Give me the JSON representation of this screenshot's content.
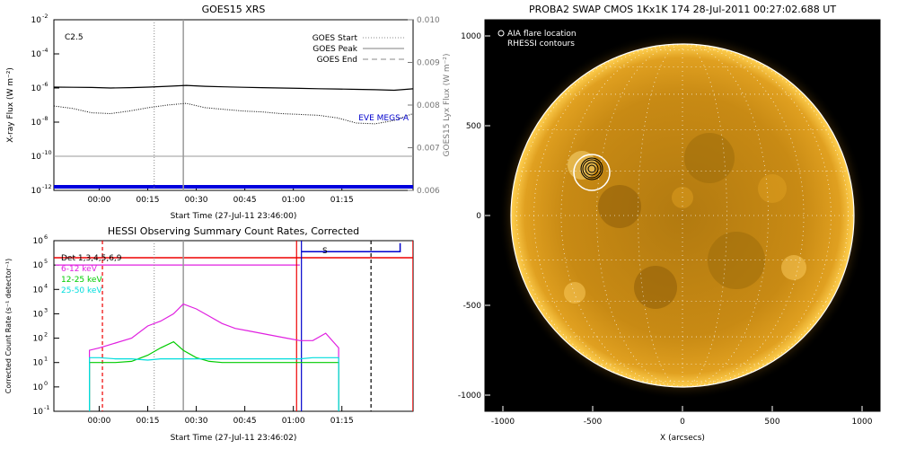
{
  "chart_data": [
    {
      "type": "line",
      "title": "GOES15 XRS",
      "xlabel": "Start Time (27-Jul-11 23:46:00)",
      "ylabel": "X-ray Flux (W m⁻²)",
      "ylabel_right": "GOES15 Lyx Flux (W m⁻²)",
      "ytick_exponents": [
        "-2",
        "-4",
        "-6",
        "-8",
        "-10",
        "-12"
      ],
      "ytick_base": "10",
      "right_ticks": [
        "0.010",
        "0.009",
        "0.008",
        "0.007",
        "0.006"
      ],
      "xticks": [
        "00:00",
        "00:15",
        "00:30",
        "00:45",
        "01:00",
        "01:15"
      ],
      "annotation_class": "C2.5",
      "eve_label": "EVE MEGS-A",
      "legend": [
        {
          "label": "GOES Start",
          "style": "dotted",
          "color": "#888888"
        },
        {
          "label": "GOES Peak",
          "style": "solid",
          "color": "#aaaaaa"
        },
        {
          "label": "GOES End",
          "style": "dashed",
          "color": "#888888"
        }
      ],
      "x_range_min": [
        -14,
        97
      ],
      "goes_start_min": 17,
      "goes_peak_min": 26,
      "series_long_log": [
        -5.95,
        -5.96,
        -5.97,
        -6.0,
        -5.98,
        -5.95,
        -5.9,
        -5.85,
        -5.9,
        -5.93,
        -5.96,
        -5.98,
        -6.0,
        -6.02,
        -6.04,
        -6.06,
        -6.08,
        -6.1,
        -6.13,
        -6.05
      ],
      "series_short_log": [
        -7.05,
        -7.2,
        -7.45,
        -7.5,
        -7.35,
        -7.15,
        -7.0,
        -6.9,
        -7.15,
        -7.25,
        -7.35,
        -7.4,
        -7.5,
        -7.55,
        -7.6,
        -7.75,
        -8.05,
        -8.1,
        -7.9,
        -7.5
      ],
      "lyx_level": 0.0068
    },
    {
      "type": "line",
      "title": "HESSI Observing Summary Count Rates, Corrected",
      "xlabel": "Start Time (27-Jul-11 23:46:02)",
      "ylabel": "Corrected Count Rate (s⁻¹ detector⁻¹)",
      "ytick_exponents": [
        "6",
        "5",
        "4",
        "3",
        "2",
        "1",
        "0",
        "-1"
      ],
      "ytick_base": "10",
      "xticks": [
        "00:00",
        "00:15",
        "00:30",
        "00:45",
        "01:00",
        "01:15"
      ],
      "flag_label": "S",
      "series": [
        {
          "name": "Det 1,3,4,5,6,9",
          "color": "#000000",
          "values": []
        },
        {
          "name": "6-12 keV",
          "color": "#e020e0",
          "values": [
            1.5,
            1.6,
            1.8,
            2.0,
            2.5,
            2.7,
            3.0,
            3.4,
            3.2,
            2.9,
            2.6,
            2.4,
            2.3,
            2.2,
            2.1,
            2.0,
            1.9,
            1.9,
            2.2,
            1.6
          ]
        },
        {
          "name": "12-25 keV",
          "color": "#00cc00",
          "values": [
            1.0,
            1.0,
            1.0,
            1.05,
            1.3,
            1.6,
            1.85,
            1.5,
            1.2,
            1.05,
            1.0,
            1.0,
            1.0,
            1.0,
            1.0,
            1.0,
            1.0,
            1.0,
            1.0,
            1.0
          ]
        },
        {
          "name": "25-50 keV",
          "color": "#00dddd",
          "values": [
            1.2,
            1.2,
            1.15,
            1.15,
            1.1,
            1.15,
            1.15,
            1.15,
            1.15,
            1.15,
            1.15,
            1.15,
            1.15,
            1.15,
            1.15,
            1.15,
            1.15,
            1.2,
            1.2,
            1.2
          ]
        }
      ],
      "series_x_min": [
        -3,
        0,
        5,
        10,
        15,
        19,
        23,
        26,
        30,
        34,
        38,
        42,
        46,
        50,
        54,
        58,
        62,
        66,
        70,
        74
      ]
    },
    {
      "type": "heatmap",
      "title": "PROBA2 SWAP CMOS 1Kx1K 174 28-Jul-2011 00:27:02.688 UT",
      "xlabel": "X (arcsecs)",
      "xticks": [
        "-1000",
        "-500",
        "0",
        "500",
        "1000"
      ],
      "yticks": [
        "1000",
        "500",
        "0",
        "-500",
        "-1000"
      ],
      "legend": [
        {
          "label": "AIA flare location",
          "symbol": "circle",
          "color": "#ffffff"
        },
        {
          "label": "RHESSI contours",
          "symbol": "circle",
          "color": "#000000"
        }
      ],
      "flare_x_arcsec": -505,
      "flare_y_arcsec": 240
    }
  ]
}
